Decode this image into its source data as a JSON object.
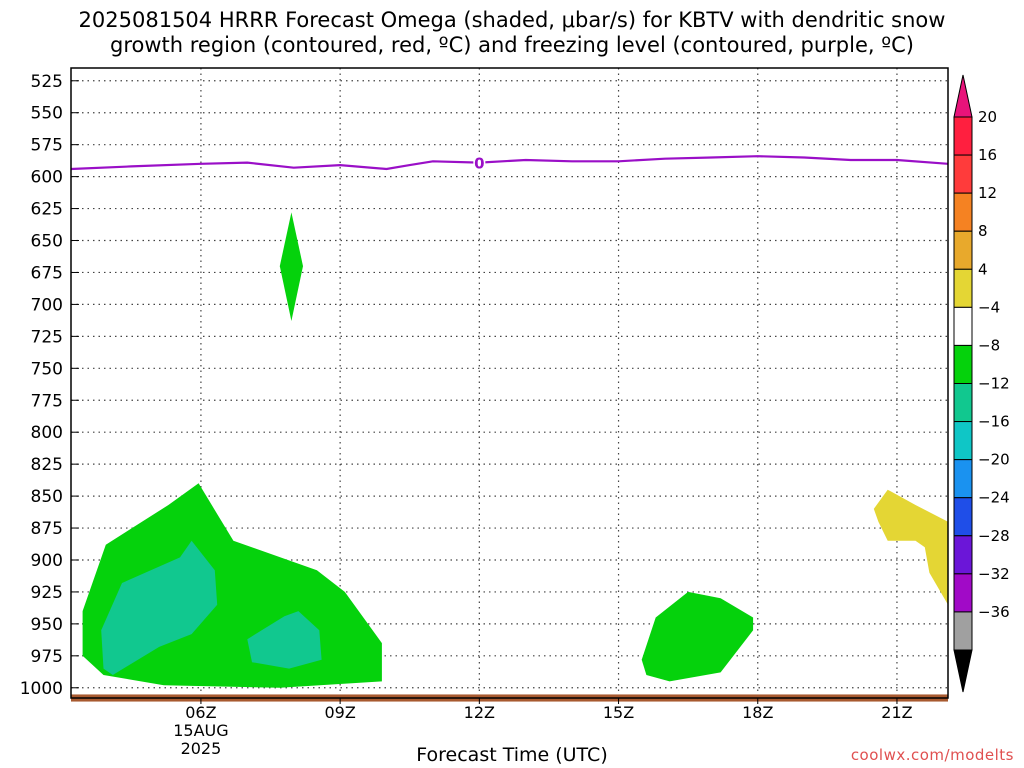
{
  "chart_data": {
    "type": "heatmap",
    "title_line1": "2025081504 HRRR Forecast Omega (shaded, μbar/s) for KBTV with dendritic snow",
    "title_line2": "growth region (contoured, red, ºC) and freezing level (contoured, purple, ºC)",
    "xlabel": "Forecast Time (UTC)",
    "credit": "coolwx.com/modelts",
    "x_unit": "hours since 2025-08-15 00Z",
    "xlim": [
      3.2,
      22.1
    ],
    "x_ticks": [
      {
        "hour": 6,
        "label": "06Z",
        "sub1": "15AUG",
        "sub2": "2025"
      },
      {
        "hour": 9,
        "label": "09Z"
      },
      {
        "hour": 12,
        "label": "12Z"
      },
      {
        "hour": 15,
        "label": "15Z"
      },
      {
        "hour": 18,
        "label": "18Z"
      },
      {
        "hour": 21,
        "label": "21Z"
      }
    ],
    "y_ticks": [
      525,
      550,
      575,
      600,
      625,
      650,
      675,
      700,
      725,
      750,
      775,
      800,
      825,
      850,
      875,
      900,
      925,
      950,
      975,
      1000
    ],
    "ylim": [
      1008,
      515
    ],
    "grid": true,
    "colorbar": {
      "labels": [
        "20",
        "16",
        "12",
        "8",
        "4",
        "-4",
        "-8",
        "-12",
        "-16",
        "-20",
        "-24",
        "-28",
        "-32",
        "-36"
      ],
      "bands": [
        "#ff1f3f",
        "#ff3b3b",
        "#f58222",
        "#e8a92c",
        "#e4d634",
        "#ffffff",
        "#05d20c",
        "#11c88f",
        "#0fc6c6",
        "#1a92f0",
        "#1f4ee8",
        "#6b16d8",
        "#a10ac7",
        "#a0a0a0"
      ],
      "top_arrow": "#e8137a",
      "bottom_arrow": "#000000"
    },
    "freezing_level": {
      "color": "#9a0fc7",
      "label": "0",
      "label_hour": 12.0,
      "points": [
        [
          3.2,
          594
        ],
        [
          4.5,
          592
        ],
        [
          6,
          590
        ],
        [
          7,
          589
        ],
        [
          8,
          593
        ],
        [
          9,
          591
        ],
        [
          10,
          594
        ],
        [
          10.5,
          591
        ],
        [
          11,
          588
        ],
        [
          12,
          589
        ],
        [
          13,
          587
        ],
        [
          14,
          588
        ],
        [
          15,
          588
        ],
        [
          16,
          586
        ],
        [
          17,
          585
        ],
        [
          18,
          584
        ],
        [
          19,
          585
        ],
        [
          20,
          587
        ],
        [
          21,
          587
        ],
        [
          22.1,
          590
        ]
      ]
    },
    "omega_regions": [
      {
        "band": "-8",
        "color": "#05d20c",
        "points": [
          [
            7.95,
            628
          ],
          [
            8.2,
            670
          ],
          [
            7.95,
            713
          ],
          [
            7.7,
            670
          ]
        ]
      },
      {
        "band": "-8",
        "color": "#05d20c",
        "points": [
          [
            3.45,
            975
          ],
          [
            3.45,
            940
          ],
          [
            3.95,
            888
          ],
          [
            5.3,
            857
          ],
          [
            5.95,
            840
          ],
          [
            6.25,
            858
          ],
          [
            6.7,
            885
          ],
          [
            8.5,
            908
          ],
          [
            9.1,
            925
          ],
          [
            9.9,
            965
          ],
          [
            9.9,
            995
          ],
          [
            7.7,
            1000
          ],
          [
            5.2,
            998
          ],
          [
            3.9,
            990
          ]
        ]
      },
      {
        "band": "-12",
        "color": "#11c88f",
        "points": [
          [
            3.9,
            985
          ],
          [
            3.85,
            955
          ],
          [
            4.3,
            918
          ],
          [
            5.55,
            898
          ],
          [
            5.8,
            885
          ],
          [
            6.3,
            908
          ],
          [
            6.35,
            935
          ],
          [
            5.8,
            958
          ],
          [
            5.1,
            968
          ],
          [
            4.1,
            990
          ]
        ]
      },
      {
        "band": "-12",
        "color": "#11c88f",
        "points": [
          [
            7.0,
            962
          ],
          [
            7.8,
            944
          ],
          [
            8.1,
            940
          ],
          [
            8.55,
            955
          ],
          [
            8.6,
            978
          ],
          [
            7.9,
            985
          ],
          [
            7.1,
            980
          ]
        ]
      },
      {
        "band": "-8",
        "color": "#05d20c",
        "points": [
          [
            15.5,
            978
          ],
          [
            15.8,
            945
          ],
          [
            16.5,
            925
          ],
          [
            17.2,
            930
          ],
          [
            17.9,
            945
          ],
          [
            17.9,
            955
          ],
          [
            17.2,
            988
          ],
          [
            16.1,
            995
          ],
          [
            15.6,
            990
          ]
        ]
      },
      {
        "band": "4",
        "color": "#e4d634",
        "points": [
          [
            20.5,
            860
          ],
          [
            20.8,
            845
          ],
          [
            21.4,
            857
          ],
          [
            22.1,
            870
          ],
          [
            22.1,
            935
          ],
          [
            21.7,
            910
          ],
          [
            21.6,
            890
          ],
          [
            21.4,
            885
          ],
          [
            20.8,
            885
          ],
          [
            20.6,
            870
          ]
        ]
      }
    ],
    "ground": {
      "color": "#a85a30",
      "top": 1006,
      "bottom": 1010
    }
  }
}
